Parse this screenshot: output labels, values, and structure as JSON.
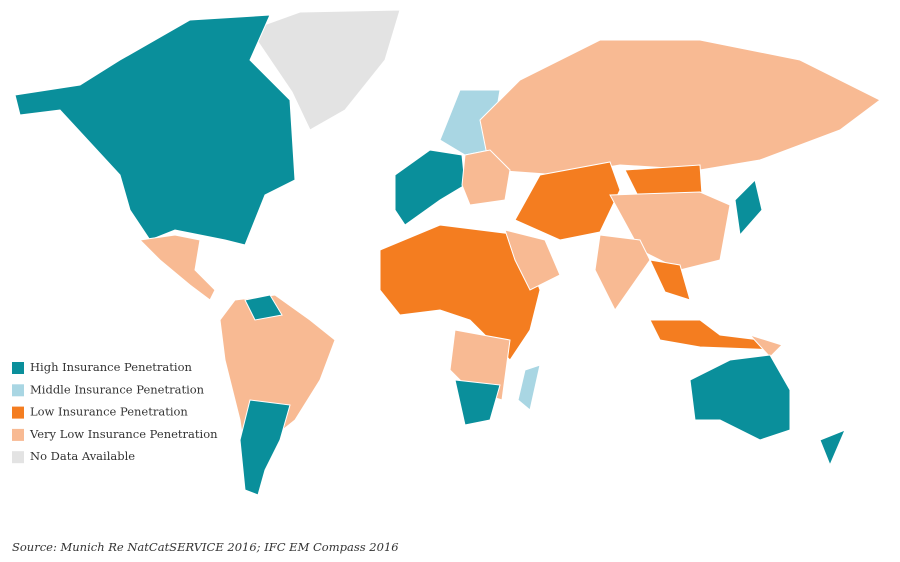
{
  "legend": {
    "items": [
      {
        "label": "High Insurance Penetration",
        "color": "#0a8f9b"
      },
      {
        "label": "Middle Insurance Penetration",
        "color": "#a9d6e3"
      },
      {
        "label": "Low Insurance Penetration",
        "color": "#f47d20"
      },
      {
        "label": "Very Low Insurance Penetration",
        "color": "#f8ba93"
      },
      {
        "label": "No Data Available",
        "color": "#e3e3e3"
      }
    ]
  },
  "source": "Source: Munich Re NatCatSERVICE 2016; IFC EM Compass 2016"
}
